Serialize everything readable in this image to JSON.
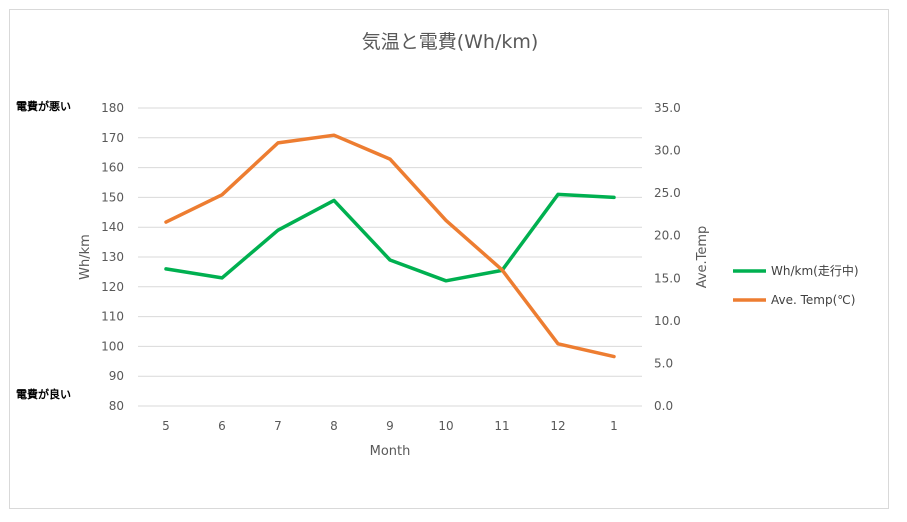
{
  "colors": {
    "wh_km": "#00b050",
    "temp": "#ed7d31",
    "grid": "#d9d9d9",
    "text": "#595959"
  },
  "annotations": {
    "top": "電費が悪い",
    "bottom": "電費が良い"
  },
  "chart_data": {
    "type": "line",
    "title": "気温と電費(Wh/km)",
    "xlabel": "Month",
    "ylabel": "Wh/km",
    "y2label": "Ave.Temp",
    "categories": [
      "5",
      "6",
      "7",
      "8",
      "9",
      "10",
      "11",
      "12",
      "1"
    ],
    "ylim": [
      80,
      180
    ],
    "yticks": [
      "180",
      "170",
      "160",
      "150",
      "140",
      "130",
      "120",
      "110",
      "100",
      "90",
      "80"
    ],
    "y2lim": [
      0,
      35
    ],
    "y2ticks": [
      "35.0",
      "30.0",
      "25.0",
      "20.0",
      "15.0",
      "10.0",
      "5.0",
      "0.0"
    ],
    "grid": true,
    "legend_position": "right",
    "series": [
      {
        "name": "Wh/km(走行中)",
        "axis": "left",
        "color": "#00b050",
        "values": [
          126,
          123,
          139,
          149,
          129,
          122,
          125.5,
          151,
          150
        ]
      },
      {
        "name": "Ave. Temp(℃)",
        "axis": "right",
        "color": "#ed7d31",
        "values": [
          21.6,
          24.8,
          30.9,
          31.8,
          29.0,
          21.8,
          16.0,
          7.3,
          5.8
        ]
      }
    ]
  }
}
